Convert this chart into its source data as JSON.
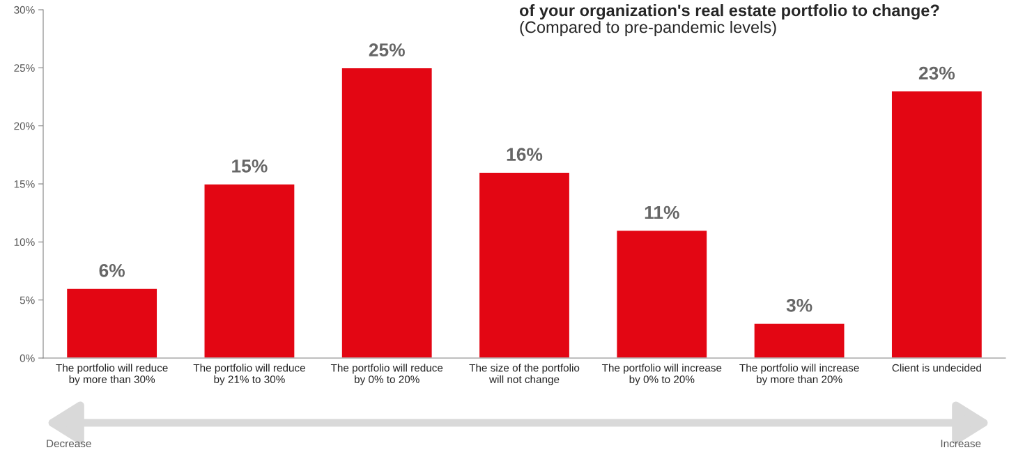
{
  "chart_data": {
    "type": "bar",
    "title": "of your organization's real estate portfolio to change?",
    "subtitle": "(Compared to pre-pandemic levels)",
    "categories": [
      "The portfolio will reduce\nby more than 30%",
      "The portfolio will reduce\nby 21% to 30%",
      "The portfolio will reduce\nby 0% to 20%",
      "The size of the portfolio\nwill not change",
      "The portfolio will increase\nby 0% to 20%",
      "The portfolio will increase\nby more than 20%",
      "Client is undecided"
    ],
    "values": [
      6,
      15,
      25,
      16,
      11,
      3,
      23
    ],
    "color": "#e30613",
    "value_labels": [
      "6%",
      "15%",
      "25%",
      "16%",
      "11%",
      "3%",
      "23%"
    ],
    "ylim": [
      0,
      30
    ],
    "yticks": [
      {
        "value": 0,
        "label": "0%"
      },
      {
        "value": 5,
        "label": "5%"
      },
      {
        "value": 10,
        "label": "10%"
      },
      {
        "value": 15,
        "label": "15%"
      },
      {
        "value": 20,
        "label": "20%"
      },
      {
        "value": 25,
        "label": "25%"
      },
      {
        "value": 30,
        "label": "30%"
      }
    ],
    "grid": false,
    "legend": false,
    "annotations": [
      "Decrease",
      "Increase"
    ]
  }
}
